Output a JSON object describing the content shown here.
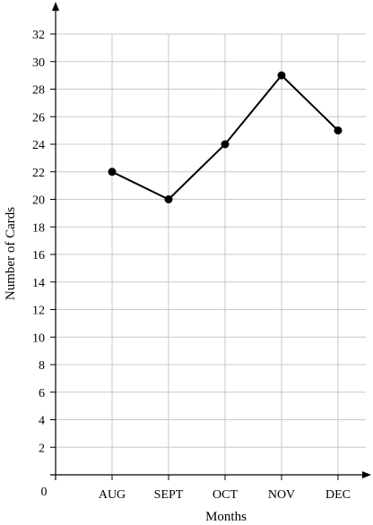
{
  "chart_data": {
    "type": "line",
    "categories": [
      "AUG",
      "SEPT",
      "OCT",
      "NOV",
      "DEC"
    ],
    "values": [
      22,
      20,
      24,
      29,
      25
    ],
    "xlabel": "Months",
    "ylabel": "Number of Cards",
    "origin_label": "0",
    "ylim": [
      0,
      32
    ],
    "y_ticks": [
      2,
      4,
      6,
      8,
      10,
      12,
      14,
      16,
      18,
      20,
      22,
      24,
      26,
      28,
      30,
      32
    ],
    "grid": true,
    "line_color": "#000000",
    "grid_color": "#c8c8c8"
  }
}
